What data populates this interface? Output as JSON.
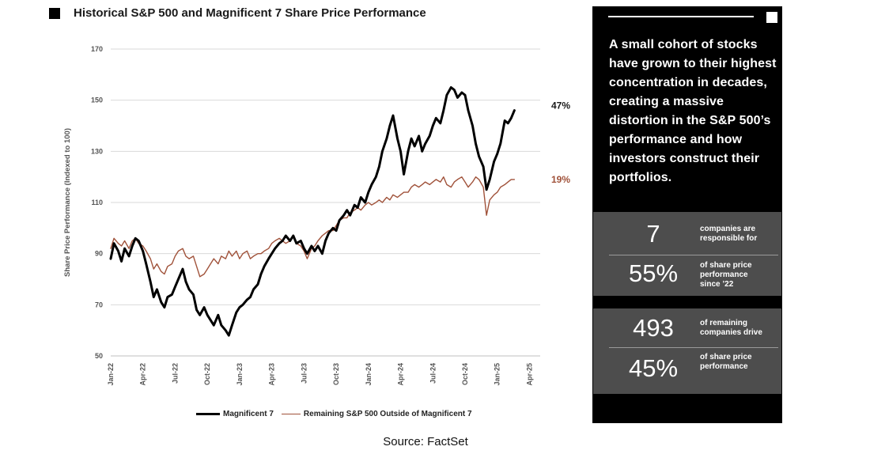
{
  "title": "Historical S&P 500 and Magnificent 7 Share Price Performance",
  "chart_data": {
    "type": "line",
    "title": "Historical S&P 500 and Magnificent 7 Share Price Performance",
    "ylabel": "Share Price Performance (Indexed to 100)",
    "xlabel": "",
    "ylim": [
      50,
      170
    ],
    "yticks": [
      50,
      70,
      90,
      110,
      130,
      150,
      170
    ],
    "xticks": [
      "Jan-22",
      "Apr-22",
      "Jul-22",
      "Oct-22",
      "Jan-23",
      "Apr-23",
      "Jul-23",
      "Oct-23",
      "Jan-24",
      "Apr-24",
      "Jul-24",
      "Oct-24",
      "Jan-25",
      "Apr-25"
    ],
    "x_unit": "month index from Jan-22",
    "series": [
      {
        "name": "Magnificent 7",
        "color": "#000000",
        "end_label": "47%",
        "points": [
          [
            0,
            88
          ],
          [
            0.3,
            94
          ],
          [
            0.7,
            91
          ],
          [
            1,
            87
          ],
          [
            1.3,
            92
          ],
          [
            1.7,
            89
          ],
          [
            2,
            93
          ],
          [
            2.3,
            96
          ],
          [
            2.6,
            95
          ],
          [
            3,
            91
          ],
          [
            3.3,
            86
          ],
          [
            3.7,
            79
          ],
          [
            4,
            73
          ],
          [
            4.3,
            76
          ],
          [
            4.7,
            71
          ],
          [
            5,
            69
          ],
          [
            5.3,
            73
          ],
          [
            5.7,
            74
          ],
          [
            6,
            77
          ],
          [
            6.3,
            80
          ],
          [
            6.7,
            84
          ],
          [
            7,
            79
          ],
          [
            7.3,
            76
          ],
          [
            7.7,
            74
          ],
          [
            8,
            68
          ],
          [
            8.3,
            66
          ],
          [
            8.7,
            69
          ],
          [
            9,
            66
          ],
          [
            9.3,
            64
          ],
          [
            9.6,
            62
          ],
          [
            10,
            66
          ],
          [
            10.3,
            62
          ],
          [
            10.7,
            60
          ],
          [
            11,
            58
          ],
          [
            11.3,
            62
          ],
          [
            11.7,
            67
          ],
          [
            12,
            69
          ],
          [
            12.3,
            70
          ],
          [
            12.7,
            72
          ],
          [
            13,
            73
          ],
          [
            13.3,
            76
          ],
          [
            13.7,
            78
          ],
          [
            14,
            82
          ],
          [
            14.3,
            85
          ],
          [
            14.7,
            88
          ],
          [
            15,
            90
          ],
          [
            15.3,
            92
          ],
          [
            15.7,
            94
          ],
          [
            16,
            95
          ],
          [
            16.3,
            97
          ],
          [
            16.7,
            95
          ],
          [
            17,
            97
          ],
          [
            17.3,
            94
          ],
          [
            17.7,
            95
          ],
          [
            18,
            92
          ],
          [
            18.3,
            90
          ],
          [
            18.7,
            93
          ],
          [
            19,
            91
          ],
          [
            19.3,
            93
          ],
          [
            19.7,
            90
          ],
          [
            20,
            95
          ],
          [
            20.3,
            98
          ],
          [
            20.7,
            100
          ],
          [
            21,
            99
          ],
          [
            21.3,
            103
          ],
          [
            21.7,
            105
          ],
          [
            22,
            107
          ],
          [
            22.3,
            105
          ],
          [
            22.7,
            109
          ],
          [
            23,
            108
          ],
          [
            23.3,
            112
          ],
          [
            23.7,
            110
          ],
          [
            24,
            114
          ],
          [
            24.3,
            117
          ],
          [
            24.7,
            120
          ],
          [
            25,
            124
          ],
          [
            25.3,
            130
          ],
          [
            25.7,
            135
          ],
          [
            26,
            140
          ],
          [
            26.3,
            144
          ],
          [
            26.7,
            135
          ],
          [
            27,
            130
          ],
          [
            27.3,
            121
          ],
          [
            27.7,
            130
          ],
          [
            28,
            135
          ],
          [
            28.3,
            132
          ],
          [
            28.7,
            136
          ],
          [
            29,
            130
          ],
          [
            29.3,
            133
          ],
          [
            29.7,
            136
          ],
          [
            30,
            140
          ],
          [
            30.3,
            143
          ],
          [
            30.7,
            141
          ],
          [
            31,
            146
          ],
          [
            31.3,
            152
          ],
          [
            31.7,
            155
          ],
          [
            32,
            154
          ],
          [
            32.3,
            151
          ],
          [
            32.7,
            153
          ],
          [
            33,
            152
          ],
          [
            33.3,
            146
          ],
          [
            33.7,
            140
          ],
          [
            34,
            133
          ],
          [
            34.3,
            128
          ],
          [
            34.7,
            124
          ],
          [
            35,
            115
          ],
          [
            35.3,
            119
          ],
          [
            35.7,
            126
          ],
          [
            36,
            129
          ],
          [
            36.3,
            133
          ],
          [
            36.7,
            142
          ],
          [
            37,
            141
          ],
          [
            37.3,
            143
          ],
          [
            37.6,
            146
          ]
        ]
      },
      {
        "name": "Remaining S&P 500 Outside of Magnificent 7",
        "color": "#a0523a",
        "end_label": "19%",
        "points": [
          [
            0,
            92
          ],
          [
            0.3,
            96
          ],
          [
            0.7,
            94
          ],
          [
            1,
            93
          ],
          [
            1.3,
            95
          ],
          [
            1.7,
            92
          ],
          [
            2,
            95
          ],
          [
            2.3,
            96
          ],
          [
            2.6,
            94
          ],
          [
            3,
            93
          ],
          [
            3.3,
            91
          ],
          [
            3.7,
            88
          ],
          [
            4,
            84
          ],
          [
            4.3,
            86
          ],
          [
            4.7,
            83
          ],
          [
            5,
            82
          ],
          [
            5.3,
            85
          ],
          [
            5.7,
            86
          ],
          [
            6,
            89
          ],
          [
            6.3,
            91
          ],
          [
            6.7,
            92
          ],
          [
            7,
            89
          ],
          [
            7.3,
            88
          ],
          [
            7.7,
            89
          ],
          [
            8,
            85
          ],
          [
            8.3,
            81
          ],
          [
            8.7,
            82
          ],
          [
            9,
            84
          ],
          [
            9.3,
            86
          ],
          [
            9.6,
            88
          ],
          [
            10,
            86
          ],
          [
            10.3,
            89
          ],
          [
            10.7,
            88
          ],
          [
            11,
            91
          ],
          [
            11.3,
            89
          ],
          [
            11.7,
            91
          ],
          [
            12,
            88
          ],
          [
            12.3,
            90
          ],
          [
            12.7,
            91
          ],
          [
            13,
            88
          ],
          [
            13.3,
            89
          ],
          [
            13.7,
            90
          ],
          [
            14,
            90
          ],
          [
            14.3,
            91
          ],
          [
            14.7,
            92
          ],
          [
            15,
            94
          ],
          [
            15.3,
            95
          ],
          [
            15.7,
            96
          ],
          [
            16,
            95
          ],
          [
            16.3,
            94
          ],
          [
            16.7,
            95
          ],
          [
            17,
            97
          ],
          [
            17.3,
            94
          ],
          [
            17.7,
            93
          ],
          [
            18,
            91
          ],
          [
            18.3,
            88
          ],
          [
            18.7,
            92
          ],
          [
            19,
            93
          ],
          [
            19.3,
            95
          ],
          [
            19.7,
            97
          ],
          [
            20,
            98
          ],
          [
            20.3,
            99
          ],
          [
            20.7,
            99
          ],
          [
            21,
            101
          ],
          [
            21.3,
            103
          ],
          [
            21.7,
            104
          ],
          [
            22,
            104
          ],
          [
            22.3,
            106
          ],
          [
            22.7,
            107
          ],
          [
            23,
            108
          ],
          [
            23.3,
            107
          ],
          [
            23.7,
            109
          ],
          [
            24,
            110
          ],
          [
            24.3,
            109
          ],
          [
            24.7,
            110
          ],
          [
            25,
            111
          ],
          [
            25.3,
            110
          ],
          [
            25.7,
            112
          ],
          [
            26,
            111
          ],
          [
            26.3,
            113
          ],
          [
            26.7,
            112
          ],
          [
            27,
            113
          ],
          [
            27.3,
            114
          ],
          [
            27.7,
            114
          ],
          [
            28,
            116
          ],
          [
            28.3,
            117
          ],
          [
            28.7,
            116
          ],
          [
            29,
            117
          ],
          [
            29.3,
            118
          ],
          [
            29.7,
            117
          ],
          [
            30,
            118
          ],
          [
            30.3,
            119
          ],
          [
            30.7,
            118
          ],
          [
            31,
            120
          ],
          [
            31.3,
            117
          ],
          [
            31.7,
            116
          ],
          [
            32,
            118
          ],
          [
            32.3,
            119
          ],
          [
            32.7,
            120
          ],
          [
            33,
            118
          ],
          [
            33.3,
            116
          ],
          [
            33.7,
            118
          ],
          [
            34,
            120
          ],
          [
            34.3,
            119
          ],
          [
            34.7,
            116
          ],
          [
            35,
            105
          ],
          [
            35.3,
            111
          ],
          [
            35.7,
            113
          ],
          [
            36,
            114
          ],
          [
            36.3,
            116
          ],
          [
            36.7,
            117
          ],
          [
            37,
            118
          ],
          [
            37.3,
            119
          ],
          [
            37.6,
            119
          ]
        ]
      }
    ],
    "legend_position": "bottom"
  },
  "source": "Source: FactSet",
  "panel": {
    "text": "A small cohort of stocks have grown to their highest concentration in decades, creating a massive distortion in the S&P 500’s performance and how investors construct their portfolios.",
    "box1": {
      "stat1": {
        "value": "7",
        "desc": [
          "companies are",
          "responsible for"
        ]
      },
      "stat2": {
        "value": "55%",
        "desc": [
          "of share price",
          "performance",
          "since ’22"
        ]
      }
    },
    "box2": {
      "stat1": {
        "value": "493",
        "desc": [
          "of remaining",
          "companies drive"
        ]
      },
      "stat2": {
        "value": "45%",
        "desc": [
          "of share price",
          "performance"
        ]
      }
    }
  }
}
